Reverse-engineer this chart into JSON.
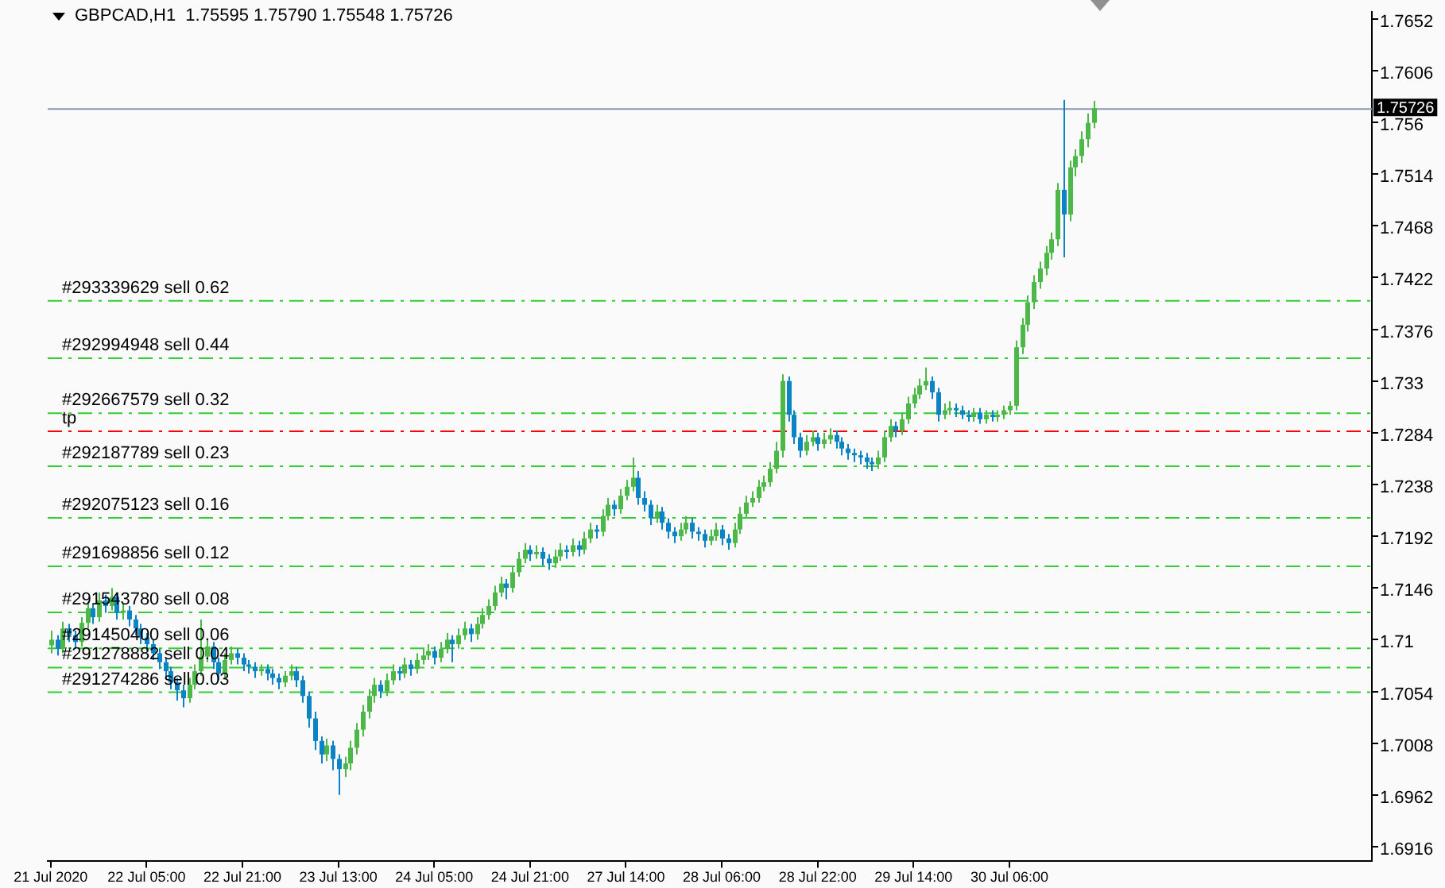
{
  "chart_data": {
    "type": "candlestick",
    "title": "GBPCAD,H1  1.75595 1.75790 1.75548 1.75726",
    "categories": [
      "21 Jul 2020",
      null,
      null,
      null,
      null,
      null,
      null,
      null,
      null,
      null,
      null,
      null,
      null,
      null,
      null,
      null,
      "22 Jul 05:00",
      null,
      null,
      null,
      null,
      null,
      null,
      null,
      null,
      null,
      null,
      null,
      null,
      null,
      null,
      null,
      "22 Jul 21:00",
      null,
      null,
      null,
      null,
      null,
      null,
      null,
      null,
      null,
      null,
      null,
      null,
      null,
      null,
      null,
      "23 Jul 13:00",
      null,
      null,
      null,
      null,
      null,
      null,
      null,
      null,
      null,
      null,
      null,
      null,
      null,
      null,
      null,
      "24 Jul 05:00",
      null,
      null,
      null,
      null,
      null,
      null,
      null,
      null,
      null,
      null,
      null,
      null,
      null,
      null,
      null,
      "24 Jul 21:00",
      null,
      null,
      null,
      null,
      null,
      null,
      null,
      null,
      null,
      null,
      null,
      null,
      null,
      null,
      null,
      "27 Jul 14:00",
      null,
      null,
      null,
      null,
      null,
      null,
      null,
      null,
      null,
      null,
      null,
      null,
      null,
      null,
      null,
      "28 Jul 06:00",
      null,
      null,
      null,
      null,
      null,
      null,
      null,
      null,
      null,
      null,
      null,
      null,
      null,
      null,
      null,
      "28 Jul 22:00",
      null,
      null,
      null,
      null,
      null,
      null,
      null,
      null,
      null,
      null,
      null,
      null,
      null,
      null,
      null,
      "29 Jul 14:00",
      null,
      null,
      null,
      null,
      null,
      null,
      null,
      null,
      null,
      null,
      null,
      null,
      null,
      null,
      null,
      "30 Jul 06:00",
      null,
      null,
      null,
      null,
      null,
      null,
      null,
      null,
      null,
      null,
      null,
      null,
      null,
      null,
      null,
      null,
      null,
      null,
      null,
      null,
      null,
      null,
      null,
      null,
      null,
      null,
      null,
      null,
      null,
      null,
      null,
      null,
      null,
      null,
      null,
      null,
      null,
      null,
      null,
      null,
      null,
      null,
      null,
      null,
      null,
      null,
      null,
      null,
      null,
      null,
      null,
      null,
      null,
      null,
      null,
      null,
      null,
      null,
      null,
      null
    ],
    "ohlc": [
      [
        1.7095,
        1.7108,
        1.7088,
        1.71
      ],
      [
        1.71,
        1.7104,
        1.7086,
        1.7092
      ],
      [
        1.7092,
        1.7116,
        1.7088,
        1.711
      ],
      [
        1.711,
        1.7114,
        1.7098,
        1.7104
      ],
      [
        1.7104,
        1.7108,
        1.7092,
        1.7098
      ],
      [
        1.7098,
        1.712,
        1.7094,
        1.7115
      ],
      [
        1.7115,
        1.7134,
        1.711,
        1.7128
      ],
      [
        1.7128,
        1.7132,
        1.7114,
        1.712
      ],
      [
        1.712,
        1.7142,
        1.7116,
        1.7135
      ],
      [
        1.7135,
        1.714,
        1.7124,
        1.713
      ],
      [
        1.713,
        1.7146,
        1.7126,
        1.7138
      ],
      [
        1.7138,
        1.7142,
        1.7118,
        1.7124
      ],
      [
        1.7124,
        1.7132,
        1.7118,
        1.7126
      ],
      [
        1.7126,
        1.713,
        1.7112,
        1.7118
      ],
      [
        1.7118,
        1.7122,
        1.7104,
        1.711
      ],
      [
        1.711,
        1.7114,
        1.7096,
        1.7102
      ],
      [
        1.7102,
        1.7106,
        1.709,
        1.7096
      ],
      [
        1.7096,
        1.71,
        1.7082,
        1.7088
      ],
      [
        1.7088,
        1.7092,
        1.7074,
        1.708
      ],
      [
        1.708,
        1.7084,
        1.7066,
        1.7072
      ],
      [
        1.7072,
        1.7076,
        1.7056,
        1.7062
      ],
      [
        1.7062,
        1.7066,
        1.7046,
        1.7055
      ],
      [
        1.7055,
        1.706,
        1.704,
        1.7048
      ],
      [
        1.7048,
        1.7066,
        1.7044,
        1.706
      ],
      [
        1.706,
        1.7078,
        1.7056,
        1.7072
      ],
      [
        1.7072,
        1.7118,
        1.7068,
        1.7085
      ],
      [
        1.7085,
        1.71,
        1.708,
        1.7094
      ],
      [
        1.7094,
        1.7098,
        1.7074,
        1.708
      ],
      [
        1.708,
        1.7084,
        1.7064,
        1.707
      ],
      [
        1.707,
        1.7088,
        1.7066,
        1.7082
      ],
      [
        1.7082,
        1.7094,
        1.7078,
        1.7088
      ],
      [
        1.7088,
        1.7092,
        1.7078,
        1.7084
      ],
      [
        1.7084,
        1.7088,
        1.7072,
        1.7078
      ],
      [
        1.7078,
        1.7082,
        1.707,
        1.7076
      ],
      [
        1.7076,
        1.708,
        1.7066,
        1.7072
      ],
      [
        1.7072,
        1.7078,
        1.7068,
        1.7074
      ],
      [
        1.7074,
        1.7078,
        1.7064,
        1.707
      ],
      [
        1.707,
        1.7074,
        1.706,
        1.7066
      ],
      [
        1.7066,
        1.707,
        1.7056,
        1.7062
      ],
      [
        1.7062,
        1.7072,
        1.7058,
        1.7068
      ],
      [
        1.7068,
        1.7078,
        1.7064,
        1.7072
      ],
      [
        1.7072,
        1.7076,
        1.7058,
        1.7064
      ],
      [
        1.7064,
        1.7068,
        1.7044,
        1.705
      ],
      [
        1.705,
        1.7054,
        1.7022,
        1.703
      ],
      [
        1.703,
        1.7036,
        1.7002,
        1.701
      ],
      [
        1.701,
        1.7014,
        1.699,
        1.6998
      ],
      [
        1.6998,
        1.7012,
        1.6992,
        1.7006
      ],
      [
        1.7006,
        1.701,
        1.6984,
        1.6994
      ],
      [
        1.6994,
        1.6998,
        1.6962,
        1.6985
      ],
      [
        1.6985,
        1.6996,
        1.6978,
        1.699
      ],
      [
        1.699,
        1.701,
        1.6984,
        1.7004
      ],
      [
        1.7004,
        1.7026,
        1.6998,
        1.702
      ],
      [
        1.702,
        1.7042,
        1.7014,
        1.7036
      ],
      [
        1.7036,
        1.7056,
        1.703,
        1.705
      ],
      [
        1.705,
        1.7066,
        1.7044,
        1.706
      ],
      [
        1.706,
        1.7064,
        1.7048,
        1.7054
      ],
      [
        1.7054,
        1.707,
        1.705,
        1.7064
      ],
      [
        1.7064,
        1.7078,
        1.706,
        1.7072
      ],
      [
        1.7072,
        1.7076,
        1.7064,
        1.707
      ],
      [
        1.707,
        1.7084,
        1.7066,
        1.7078
      ],
      [
        1.7078,
        1.7082,
        1.7068,
        1.7074
      ],
      [
        1.7074,
        1.7088,
        1.707,
        1.7082
      ],
      [
        1.7082,
        1.7092,
        1.7078,
        1.7086
      ],
      [
        1.7086,
        1.7096,
        1.7082,
        1.709
      ],
      [
        1.709,
        1.7094,
        1.7078,
        1.7084
      ],
      [
        1.7084,
        1.7098,
        1.708,
        1.7092
      ],
      [
        1.7092,
        1.7106,
        1.7088,
        1.71
      ],
      [
        1.71,
        1.7104,
        1.708,
        1.7096
      ],
      [
        1.7096,
        1.711,
        1.7092,
        1.7104
      ],
      [
        1.7104,
        1.7116,
        1.71,
        1.711
      ],
      [
        1.711,
        1.7114,
        1.7098,
        1.7105
      ],
      [
        1.7105,
        1.712,
        1.71,
        1.7114
      ],
      [
        1.7114,
        1.7128,
        1.711,
        1.7122
      ],
      [
        1.7122,
        1.7136,
        1.7118,
        1.713
      ],
      [
        1.713,
        1.7148,
        1.7126,
        1.7142
      ],
      [
        1.7142,
        1.7156,
        1.7138,
        1.715
      ],
      [
        1.715,
        1.7154,
        1.7136,
        1.7146
      ],
      [
        1.7146,
        1.7166,
        1.7142,
        1.716
      ],
      [
        1.716,
        1.7178,
        1.7156,
        1.7172
      ],
      [
        1.7172,
        1.7186,
        1.7168,
        1.718
      ],
      [
        1.718,
        1.7184,
        1.717,
        1.7176
      ],
      [
        1.7176,
        1.7184,
        1.7172,
        1.7178
      ],
      [
        1.7178,
        1.7182,
        1.7166,
        1.7172
      ],
      [
        1.7172,
        1.7176,
        1.7162,
        1.7168
      ],
      [
        1.7168,
        1.718,
        1.7164,
        1.7174
      ],
      [
        1.7174,
        1.7186,
        1.717,
        1.718
      ],
      [
        1.718,
        1.7184,
        1.7172,
        1.7178
      ],
      [
        1.7178,
        1.719,
        1.7174,
        1.7184
      ],
      [
        1.7184,
        1.7188,
        1.7174,
        1.718
      ],
      [
        1.718,
        1.7196,
        1.7176,
        1.719
      ],
      [
        1.719,
        1.7204,
        1.7186,
        1.7198
      ],
      [
        1.7198,
        1.7202,
        1.719,
        1.7196
      ],
      [
        1.7196,
        1.7216,
        1.7192,
        1.721
      ],
      [
        1.721,
        1.7226,
        1.7206,
        1.722
      ],
      [
        1.722,
        1.7224,
        1.721,
        1.7216
      ],
      [
        1.7216,
        1.7234,
        1.7212,
        1.7228
      ],
      [
        1.7228,
        1.7242,
        1.7224,
        1.7236
      ],
      [
        1.7236,
        1.7262,
        1.7232,
        1.7244
      ],
      [
        1.7244,
        1.725,
        1.722,
        1.7226
      ],
      [
        1.7226,
        1.7232,
        1.7214,
        1.722
      ],
      [
        1.722,
        1.7224,
        1.7202,
        1.7208
      ],
      [
        1.7208,
        1.722,
        1.7204,
        1.7214
      ],
      [
        1.7214,
        1.7218,
        1.7198,
        1.7204
      ],
      [
        1.7204,
        1.7208,
        1.719,
        1.7196
      ],
      [
        1.7196,
        1.72,
        1.7186,
        1.7192
      ],
      [
        1.7192,
        1.7204,
        1.7188,
        1.7198
      ],
      [
        1.7198,
        1.721,
        1.7194,
        1.7204
      ],
      [
        1.7204,
        1.7208,
        1.719,
        1.7196
      ],
      [
        1.7196,
        1.72,
        1.7188,
        1.7194
      ],
      [
        1.7194,
        1.7198,
        1.7182,
        1.7188
      ],
      [
        1.7188,
        1.7198,
        1.7184,
        1.7192
      ],
      [
        1.7192,
        1.7204,
        1.7188,
        1.7198
      ],
      [
        1.7198,
        1.7202,
        1.7184,
        1.719
      ],
      [
        1.719,
        1.7194,
        1.718,
        1.7186
      ],
      [
        1.7186,
        1.7204,
        1.7182,
        1.7198
      ],
      [
        1.7198,
        1.7218,
        1.7194,
        1.7212
      ],
      [
        1.7212,
        1.7228,
        1.7208,
        1.7222
      ],
      [
        1.7222,
        1.7232,
        1.7218,
        1.7226
      ],
      [
        1.7226,
        1.7242,
        1.7222,
        1.7236
      ],
      [
        1.7236,
        1.7246,
        1.7232,
        1.724
      ],
      [
        1.724,
        1.7258,
        1.7236,
        1.7252
      ],
      [
        1.7252,
        1.7276,
        1.7248,
        1.7268
      ],
      [
        1.7268,
        1.7336,
        1.7262,
        1.733
      ],
      [
        1.733,
        1.7334,
        1.7294,
        1.73
      ],
      [
        1.73,
        1.7304,
        1.7274,
        1.728
      ],
      [
        1.728,
        1.7284,
        1.7262,
        1.7268
      ],
      [
        1.7268,
        1.7282,
        1.7264,
        1.7276
      ],
      [
        1.7276,
        1.7286,
        1.7272,
        1.728
      ],
      [
        1.728,
        1.7284,
        1.7268,
        1.7274
      ],
      [
        1.7274,
        1.7284,
        1.727,
        1.7278
      ],
      [
        1.7278,
        1.7288,
        1.7274,
        1.7282
      ],
      [
        1.7282,
        1.7286,
        1.727,
        1.7276
      ],
      [
        1.7276,
        1.728,
        1.7264,
        1.727
      ],
      [
        1.727,
        1.7274,
        1.726,
        1.7266
      ],
      [
        1.7266,
        1.727,
        1.7258,
        1.7264
      ],
      [
        1.7264,
        1.7268,
        1.7256,
        1.7262
      ],
      [
        1.7262,
        1.7266,
        1.7252,
        1.7258
      ],
      [
        1.7258,
        1.7262,
        1.725,
        1.7256
      ],
      [
        1.7256,
        1.7268,
        1.7252,
        1.7262
      ],
      [
        1.7262,
        1.7286,
        1.7258,
        1.728
      ],
      [
        1.728,
        1.7296,
        1.7276,
        1.729
      ],
      [
        1.729,
        1.7294,
        1.728,
        1.7286
      ],
      [
        1.7286,
        1.7302,
        1.7282,
        1.7296
      ],
      [
        1.7296,
        1.7316,
        1.7292,
        1.731
      ],
      [
        1.731,
        1.7324,
        1.7306,
        1.7318
      ],
      [
        1.7318,
        1.7332,
        1.7314,
        1.7326
      ],
      [
        1.7326,
        1.7342,
        1.7322,
        1.733
      ],
      [
        1.733,
        1.7334,
        1.7314,
        1.732
      ],
      [
        1.732,
        1.7324,
        1.7294,
        1.73
      ],
      [
        1.73,
        1.731,
        1.7296,
        1.7304
      ],
      [
        1.7304,
        1.7312,
        1.73,
        1.7306
      ],
      [
        1.7306,
        1.731,
        1.7298,
        1.7304
      ],
      [
        1.7304,
        1.7308,
        1.7296,
        1.73
      ],
      [
        1.73,
        1.7304,
        1.7294,
        1.7298
      ],
      [
        1.7298,
        1.7306,
        1.7294,
        1.7302
      ],
      [
        1.7302,
        1.7306,
        1.7292,
        1.7296
      ],
      [
        1.7296,
        1.7304,
        1.7292,
        1.73
      ],
      [
        1.73,
        1.7304,
        1.7294,
        1.7298
      ],
      [
        1.7298,
        1.7304,
        1.7294,
        1.73
      ],
      [
        1.73,
        1.7308,
        1.7296,
        1.7304
      ],
      [
        1.7304,
        1.7312,
        1.73,
        1.7308
      ],
      [
        1.7308,
        1.7366,
        1.7304,
        1.736
      ],
      [
        1.736,
        1.7386,
        1.7354,
        1.738
      ],
      [
        1.738,
        1.7406,
        1.7374,
        1.74
      ],
      [
        1.74,
        1.7424,
        1.7394,
        1.7418
      ],
      [
        1.7418,
        1.7436,
        1.7412,
        1.743
      ],
      [
        1.743,
        1.745,
        1.7424,
        1.7444
      ],
      [
        1.7444,
        1.7462,
        1.7438,
        1.7456
      ],
      [
        1.7456,
        1.7506,
        1.745,
        1.75
      ],
      [
        1.75,
        1.758,
        1.744,
        1.7478
      ],
      [
        1.7478,
        1.7526,
        1.7472,
        1.752
      ],
      [
        1.752,
        1.7536,
        1.7512,
        1.753
      ],
      [
        1.753,
        1.7552,
        1.7524,
        1.7545
      ],
      [
        1.7545,
        1.7568,
        1.7538,
        1.75595
      ],
      [
        1.75595,
        1.7579,
        1.75548,
        1.75726
      ],
      null,
      null,
      null,
      null,
      null,
      null,
      null,
      null,
      null,
      null,
      null,
      null,
      null,
      null,
      null,
      null,
      null,
      null,
      null,
      null,
      null,
      null,
      null,
      null,
      null,
      null,
      null,
      null,
      null,
      null,
      null,
      null,
      null,
      null,
      null,
      null,
      null,
      null,
      null,
      null,
      null,
      null,
      null,
      null,
      null,
      null
    ],
    "ylim": [
      1.6903,
      1.7658
    ],
    "yticks": [
      1.6916,
      1.6962,
      1.7008,
      1.7054,
      1.71,
      1.7146,
      1.7192,
      1.7238,
      1.7284,
      1.733,
      1.7376,
      1.7422,
      1.7468,
      1.7514,
      1.756,
      1.7606,
      1.7652
    ],
    "ref_lines": [
      {
        "axis": "y",
        "value": 1.7402,
        "label": "#293339629 sell 0.62",
        "color": "#32cd32",
        "line_style": "dashed"
      },
      {
        "axis": "y",
        "value": 1.7351,
        "label": "#292994948 sell 0.44",
        "color": "#32cd32",
        "line_style": "dashed"
      },
      {
        "axis": "y",
        "value": 1.7302,
        "label": "#292667579 sell 0.32",
        "color": "#32cd32",
        "line_style": "dashed"
      },
      {
        "axis": "y",
        "value": 1.7286,
        "label": "tp",
        "color": "#ff0000",
        "line_style": "dashed"
      },
      {
        "axis": "y",
        "value": 1.7255,
        "label": "#292187789 sell 0.23",
        "color": "#32cd32",
        "line_style": "dashed"
      },
      {
        "axis": "y",
        "value": 1.7209,
        "label": "#292075123 sell 0.16",
        "color": "#32cd32",
        "line_style": "dashed"
      },
      {
        "axis": "y",
        "value": 1.7166,
        "label": "#291698856 sell 0.12",
        "color": "#32cd32",
        "line_style": "dashed"
      },
      {
        "axis": "y",
        "value": 1.7125,
        "label": "#291543780 sell 0.08",
        "color": "#32cd32",
        "line_style": "dashed"
      },
      {
        "axis": "y",
        "value": 1.7093,
        "label": "#291450400 sell 0.06",
        "color": "#32cd32",
        "line_style": "dashed"
      },
      {
        "axis": "y",
        "value": 1.7076,
        "label": "#291278882 sell 0.04",
        "color": "#32cd32",
        "line_style": "dashed"
      },
      {
        "axis": "y",
        "value": 1.7054,
        "label": "#291274286 sell 0.03",
        "color": "#32cd32",
        "line_style": "dashed"
      },
      {
        "axis": "y",
        "value": 1.75726,
        "label": "1.75726",
        "color": "#8898b0",
        "line_style": "solid"
      }
    ],
    "grid": false,
    "legend": false
  }
}
